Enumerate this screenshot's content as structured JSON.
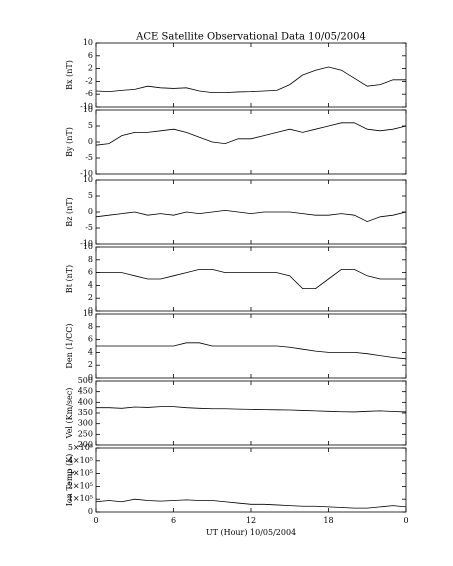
{
  "title": "ACE Satellite Observational Data   10/05/2004",
  "xlabel": "UT (Hour)   10/05/2004",
  "x": [
    0,
    1,
    2,
    3,
    4,
    5,
    6,
    7,
    8,
    9,
    10,
    11,
    12,
    13,
    14,
    15,
    16,
    17,
    18,
    19,
    20,
    21,
    22,
    23,
    24
  ],
  "xlim": [
    0,
    24
  ],
  "xticks": [
    0,
    6,
    12,
    18,
    {
      "value": 24,
      "label": "0"
    }
  ],
  "chart_data": [
    {
      "type": "line",
      "ylabel": "Bx (nT)",
      "color": "#000000",
      "ylim": [
        -10,
        10
      ],
      "yticks": [
        -10,
        -6,
        -2,
        2,
        6,
        10
      ],
      "values": [
        -5,
        -5.2,
        -4.8,
        -4.5,
        -3.5,
        -4,
        -4.2,
        -4,
        -5,
        -5.5,
        -5.5,
        -5.3,
        -5.2,
        -5,
        -4.8,
        -3,
        0,
        1.5,
        2.5,
        1.5,
        -1,
        -3.5,
        -3,
        -1.5,
        -1.5
      ]
    },
    {
      "type": "line",
      "ylabel": "By (nT)",
      "color": "#000000",
      "ylim": [
        -10,
        10
      ],
      "yticks": [
        -10,
        -5,
        0,
        5,
        10
      ],
      "values": [
        -1,
        -0.5,
        2,
        3,
        3,
        3.5,
        4,
        3,
        1.5,
        0,
        -0.5,
        1,
        1,
        2,
        3,
        4,
        3,
        4,
        5,
        6,
        6,
        4,
        3.5,
        4,
        5
      ]
    },
    {
      "type": "line",
      "ylabel": "Bz (nT)",
      "color": "#000000",
      "ylim": [
        -10,
        10
      ],
      "yticks": [
        -10,
        -5,
        0,
        5,
        10
      ],
      "values": [
        -1.5,
        -1,
        -0.5,
        0,
        -1,
        -0.5,
        -1,
        0,
        -0.5,
        0,
        0.5,
        0,
        -0.5,
        0,
        0,
        0,
        -0.5,
        -1,
        -1,
        -0.5,
        -1,
        -3,
        -1.5,
        -1,
        0
      ]
    },
    {
      "type": "line",
      "ylabel": "Bt (nT)",
      "color": "#000000",
      "ylim": [
        0,
        10
      ],
      "yticks": [
        0,
        2,
        4,
        6,
        8,
        10
      ],
      "values": [
        6,
        6,
        6,
        5.5,
        5,
        5,
        5.5,
        6,
        6.5,
        6.5,
        6,
        6,
        6,
        6,
        6,
        5.5,
        3.5,
        3.5,
        5,
        6.5,
        6.5,
        5.5,
        5,
        5,
        5
      ]
    },
    {
      "type": "line",
      "ylabel": "Den (1/CC)",
      "color": "#000000",
      "ylim": [
        0,
        10
      ],
      "yticks": [
        0,
        2,
        4,
        6,
        8,
        10
      ],
      "values": [
        5,
        5,
        5,
        5,
        5,
        5,
        5,
        5.5,
        5.5,
        5,
        5,
        5,
        5,
        5,
        5,
        4.8,
        4.5,
        4.2,
        4,
        4,
        4,
        3.8,
        3.5,
        3.2,
        3
      ]
    },
    {
      "type": "line",
      "ylabel": "Vel (Km/sec)",
      "color": "#000000",
      "ylim": [
        200,
        500
      ],
      "yticks": [
        200,
        250,
        300,
        350,
        400,
        450,
        500
      ],
      "values": [
        375,
        375,
        372,
        378,
        376,
        380,
        380,
        375,
        372,
        370,
        370,
        368,
        367,
        366,
        365,
        364,
        362,
        360,
        358,
        356,
        355,
        358,
        360,
        357,
        355
      ]
    },
    {
      "type": "line",
      "ylabel": "Ion Temp (K)",
      "color": "#000000",
      "ylim": [
        0,
        500000
      ],
      "yticks": [
        0,
        {
          "value": 100000,
          "label": "1×10⁵"
        },
        {
          "value": 200000,
          "label": "2×10⁵"
        },
        {
          "value": 300000,
          "label": "3×10⁵"
        },
        {
          "value": 400000,
          "label": "4×10⁵"
        },
        {
          "value": 500000,
          "label": "5×10⁵"
        }
      ],
      "values": [
        80000,
        90000,
        80000,
        100000,
        90000,
        85000,
        90000,
        95000,
        90000,
        90000,
        80000,
        70000,
        60000,
        60000,
        55000,
        50000,
        45000,
        45000,
        40000,
        35000,
        30000,
        30000,
        40000,
        50000,
        40000
      ]
    }
  ]
}
